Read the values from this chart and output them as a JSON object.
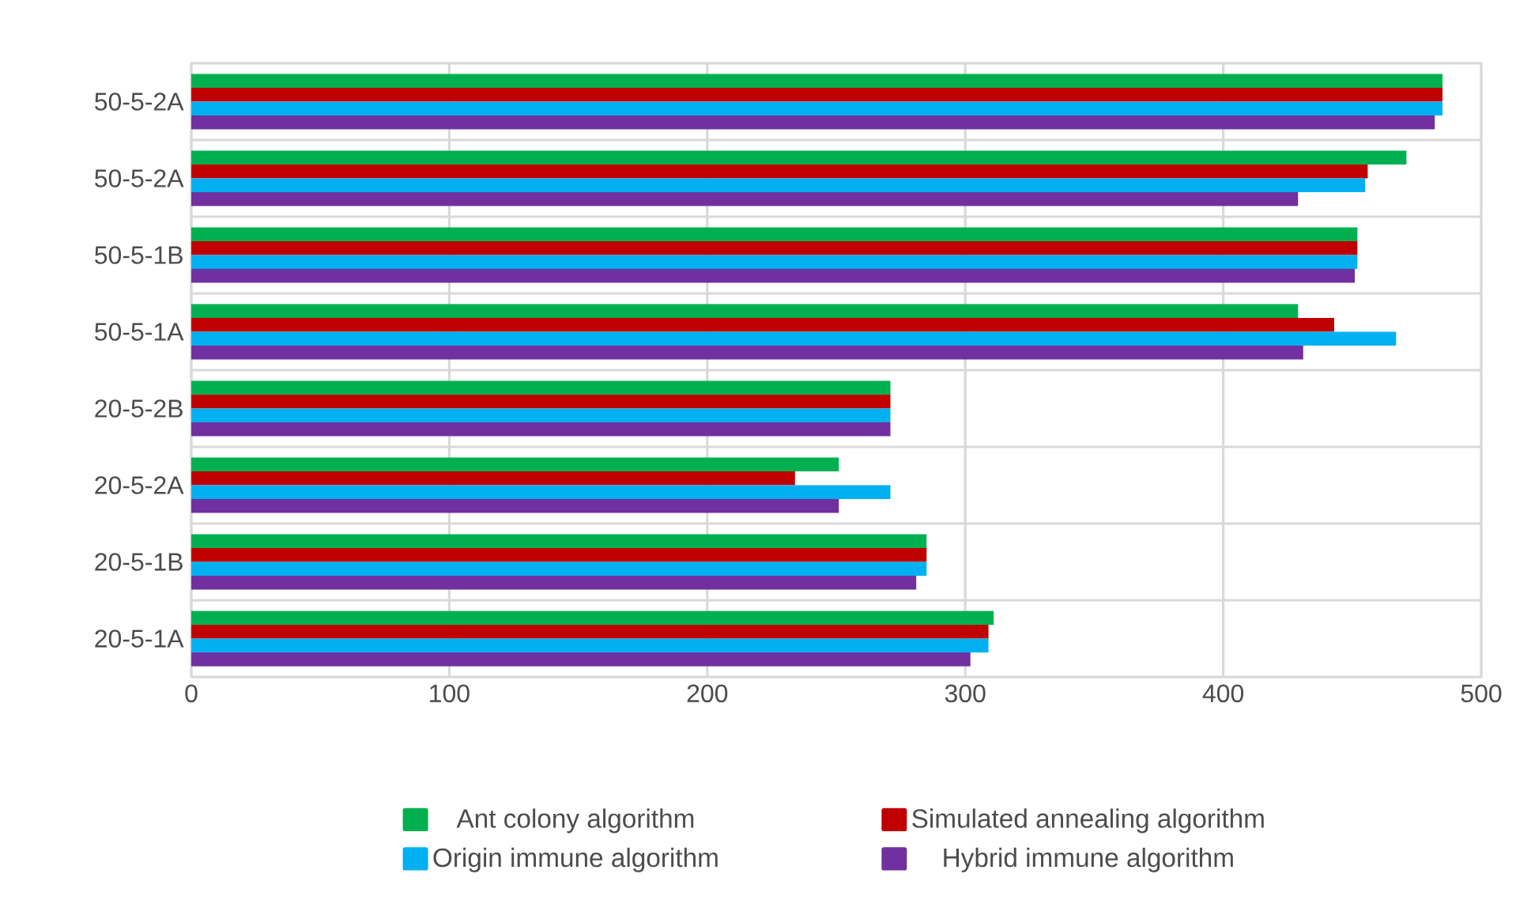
{
  "chart_data": {
    "type": "bar",
    "orientation": "horizontal",
    "categories": [
      "50-5-2A",
      "50-5-2A",
      "50-5-1B",
      "50-5-1A",
      "20-5-2B",
      "20-5-2A",
      "20-5-1B",
      "20-5-1A"
    ],
    "series": [
      {
        "name": "Ant colony algorithm",
        "color": "#00b050",
        "values": [
          485,
          471,
          452,
          429,
          271,
          251,
          285,
          311
        ]
      },
      {
        "name": "Simulated annealing algorithm",
        "color": "#c00000",
        "values": [
          485,
          456,
          452,
          443,
          271,
          234,
          285,
          309
        ]
      },
      {
        "name": "Origin immune algorithm",
        "color": "#00b0f0",
        "values": [
          485,
          455,
          452,
          467,
          271,
          271,
          285,
          309
        ]
      },
      {
        "name": "Hybrid immune algorithm",
        "color": "#7030a0",
        "values": [
          482,
          429,
          451,
          431,
          271,
          251,
          281,
          302
        ]
      }
    ],
    "xlim": [
      0,
      500
    ],
    "xticks": [
      0,
      100,
      200,
      300,
      400,
      500
    ],
    "grid": true,
    "legend": "bottom"
  }
}
